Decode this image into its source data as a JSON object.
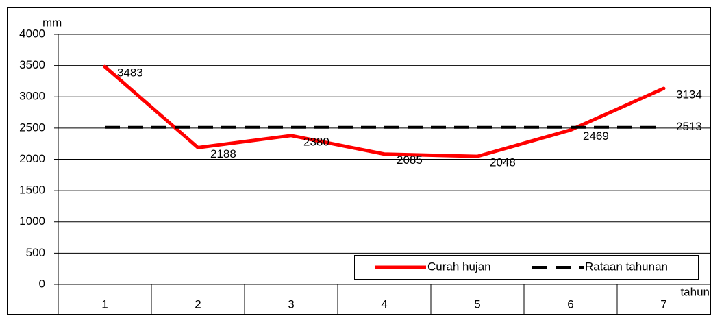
{
  "chart_data": {
    "type": "line",
    "y_label": "mm",
    "x_label": "tahun",
    "categories": [
      "1",
      "2",
      "3",
      "4",
      "5",
      "6",
      "7"
    ],
    "series": [
      {
        "name": "Curah hujan",
        "color": "#ff0000",
        "dashed": false,
        "data_labels": "all",
        "values": [
          3483,
          2188,
          2380,
          2085,
          2048,
          2469,
          3134
        ]
      },
      {
        "name": "Rataan tahunan",
        "color": "#000000",
        "dashed": true,
        "data_labels": "last",
        "values": [
          2513,
          2513,
          2513,
          2513,
          2513,
          2513,
          2513
        ]
      }
    ],
    "ylim": [
      0,
      4000
    ],
    "yticks": [
      0,
      500,
      1000,
      1500,
      2000,
      2500,
      3000,
      3500,
      4000
    ],
    "grid": true,
    "legend": "bottom-right"
  }
}
